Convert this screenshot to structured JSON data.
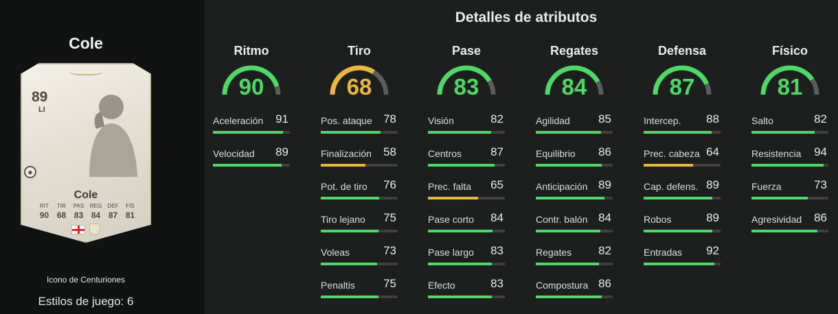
{
  "player": {
    "name": "Cole",
    "card": {
      "rating": "89",
      "position": "LI",
      "name": "Cole",
      "stat_labels": [
        "RIT",
        "TIR",
        "PAS",
        "REG",
        "DEF",
        "FÍS"
      ],
      "stat_values": [
        "90",
        "68",
        "83",
        "84",
        "87",
        "81"
      ],
      "nation_icon": "england-flag-icon",
      "club_icon": "club-badge-icon"
    },
    "subtitle": "Icono de Centuriones",
    "playstyles": "Estilos de juego: 6"
  },
  "attributes_title": "Detalles de atributos",
  "colors": {
    "green": "#4cd964",
    "yellow": "#eab63c",
    "track": "#3d403f",
    "background": "#1c1f1e",
    "left_panel": "#111312"
  },
  "categories": [
    {
      "name": "Ritmo",
      "value": 90,
      "attributes": [
        {
          "label": "Aceleración",
          "value": 91
        },
        {
          "label": "Velocidad",
          "value": 89
        }
      ]
    },
    {
      "name": "Tiro",
      "value": 68,
      "attributes": [
        {
          "label": "Pos. ataque",
          "value": 78
        },
        {
          "label": "Finalización",
          "value": 58
        },
        {
          "label": "Pot. de tiro",
          "value": 76
        },
        {
          "label": "Tiro lejano",
          "value": 75
        },
        {
          "label": "Voleas",
          "value": 73
        },
        {
          "label": "Penaltis",
          "value": 75
        }
      ]
    },
    {
      "name": "Pase",
      "value": 83,
      "attributes": [
        {
          "label": "Visión",
          "value": 82
        },
        {
          "label": "Centros",
          "value": 87
        },
        {
          "label": "Prec. falta",
          "value": 65
        },
        {
          "label": "Pase corto",
          "value": 84
        },
        {
          "label": "Pase largo",
          "value": 83
        },
        {
          "label": "Efecto",
          "value": 83
        }
      ]
    },
    {
      "name": "Regates",
      "value": 84,
      "attributes": [
        {
          "label": "Agilidad",
          "value": 85
        },
        {
          "label": "Equilibrio",
          "value": 86
        },
        {
          "label": "Anticipación",
          "value": 89
        },
        {
          "label": "Contr. balón",
          "value": 84
        },
        {
          "label": "Regates",
          "value": 82
        },
        {
          "label": "Compostura",
          "value": 86
        }
      ]
    },
    {
      "name": "Defensa",
      "value": 87,
      "attributes": [
        {
          "label": "Intercep.",
          "value": 88
        },
        {
          "label": "Prec. cabeza",
          "value": 64
        },
        {
          "label": "Cap. defens.",
          "value": 89
        },
        {
          "label": "Robos",
          "value": 89
        },
        {
          "label": "Entradas",
          "value": 92
        }
      ]
    },
    {
      "name": "Físico",
      "value": 81,
      "attributes": [
        {
          "label": "Salto",
          "value": 82
        },
        {
          "label": "Resistencia",
          "value": 94
        },
        {
          "label": "Fuerza",
          "value": 73
        },
        {
          "label": "Agresividad",
          "value": 86
        }
      ]
    }
  ]
}
